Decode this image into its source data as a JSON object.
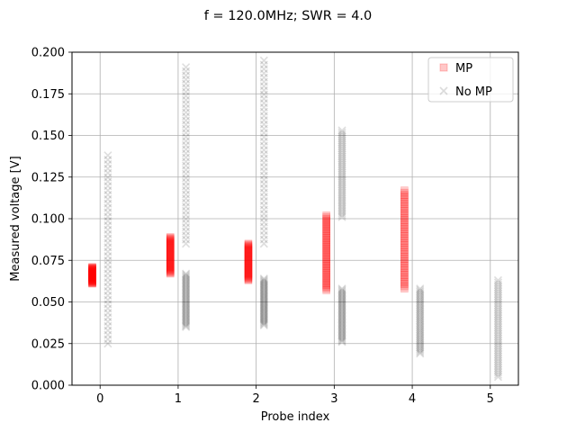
{
  "chart_data": {
    "type": "scatter",
    "title": "f = 120.0MHz; SWR = 4.0",
    "xlabel": "Probe index",
    "ylabel": "Measured voltage [V]",
    "xlim": [
      -0.36,
      5.36
    ],
    "ylim": [
      0.0,
      0.2
    ],
    "x_ticks": [
      0,
      1,
      2,
      3,
      4,
      5
    ],
    "y_ticks": [
      0.0,
      0.025,
      0.05,
      0.075,
      0.1,
      0.125,
      0.15,
      0.175,
      0.2
    ],
    "x_tick_labels": [
      "0",
      "1",
      "2",
      "3",
      "4",
      "5"
    ],
    "y_tick_labels": [
      "0.000",
      "0.025",
      "0.050",
      "0.075",
      "0.100",
      "0.125",
      "0.150",
      "0.175",
      "0.200"
    ],
    "grid": true,
    "legend_position": "top-right",
    "legend": [
      "MP",
      "No MP"
    ],
    "series": [
      {
        "name": "MP",
        "marker": "square",
        "color": "#ff0000",
        "x_offset": -0.1,
        "ranges": [
          {
            "probe": 0,
            "min": 0.061,
            "max": 0.071
          },
          {
            "probe": 1,
            "min": 0.067,
            "max": 0.089
          },
          {
            "probe": 2,
            "min": 0.063,
            "max": 0.085
          },
          {
            "probe": 3,
            "min": 0.057,
            "max": 0.102
          },
          {
            "probe": 4,
            "min": 0.058,
            "max": 0.117
          }
        ]
      },
      {
        "name": "No MP",
        "marker": "x",
        "color": "#000000",
        "x_offset": 0.1,
        "ranges": [
          {
            "probe": 0,
            "min": 0.025,
            "max": 0.138
          },
          {
            "probe": 1,
            "min": 0.035,
            "max": 0.067
          },
          {
            "probe": 1,
            "min": 0.085,
            "max": 0.191
          },
          {
            "probe": 2,
            "min": 0.036,
            "max": 0.064
          },
          {
            "probe": 2,
            "min": 0.085,
            "max": 0.195
          },
          {
            "probe": 3,
            "min": 0.026,
            "max": 0.058
          },
          {
            "probe": 3,
            "min": 0.101,
            "max": 0.153
          },
          {
            "probe": 4,
            "min": 0.019,
            "max": 0.058
          },
          {
            "probe": 5,
            "min": 0.005,
            "max": 0.063
          }
        ]
      }
    ]
  }
}
